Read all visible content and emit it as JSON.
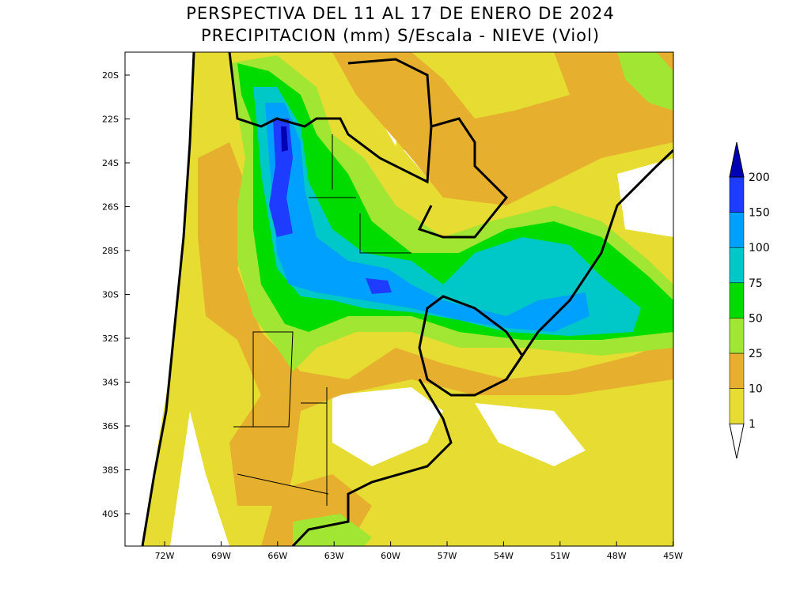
{
  "header": {
    "title_line1": "PERSPECTIVA DEL 11 AL 17 DE ENERO DE 2024",
    "title_line2": "PRECIPITACION (mm) S/Escala - NIEVE (Viol)"
  },
  "map": {
    "lat_labels": [
      "20S",
      "22S",
      "24S",
      "26S",
      "28S",
      "30S",
      "32S",
      "34S",
      "36S",
      "38S",
      "40S"
    ],
    "lon_labels": [
      "72W",
      "69W",
      "66W",
      "63W",
      "60W",
      "57W",
      "54W",
      "51W",
      "48W",
      "45W"
    ]
  },
  "colorbar": {
    "levels": [
      1,
      10,
      25,
      50,
      75,
      100,
      150,
      200
    ],
    "colors": [
      "#e6dc32",
      "#e6af2d",
      "#a0e632",
      "#00dc00",
      "#00c8c8",
      "#00a0ff",
      "#1e3cff",
      "#0000b4"
    ]
  }
}
